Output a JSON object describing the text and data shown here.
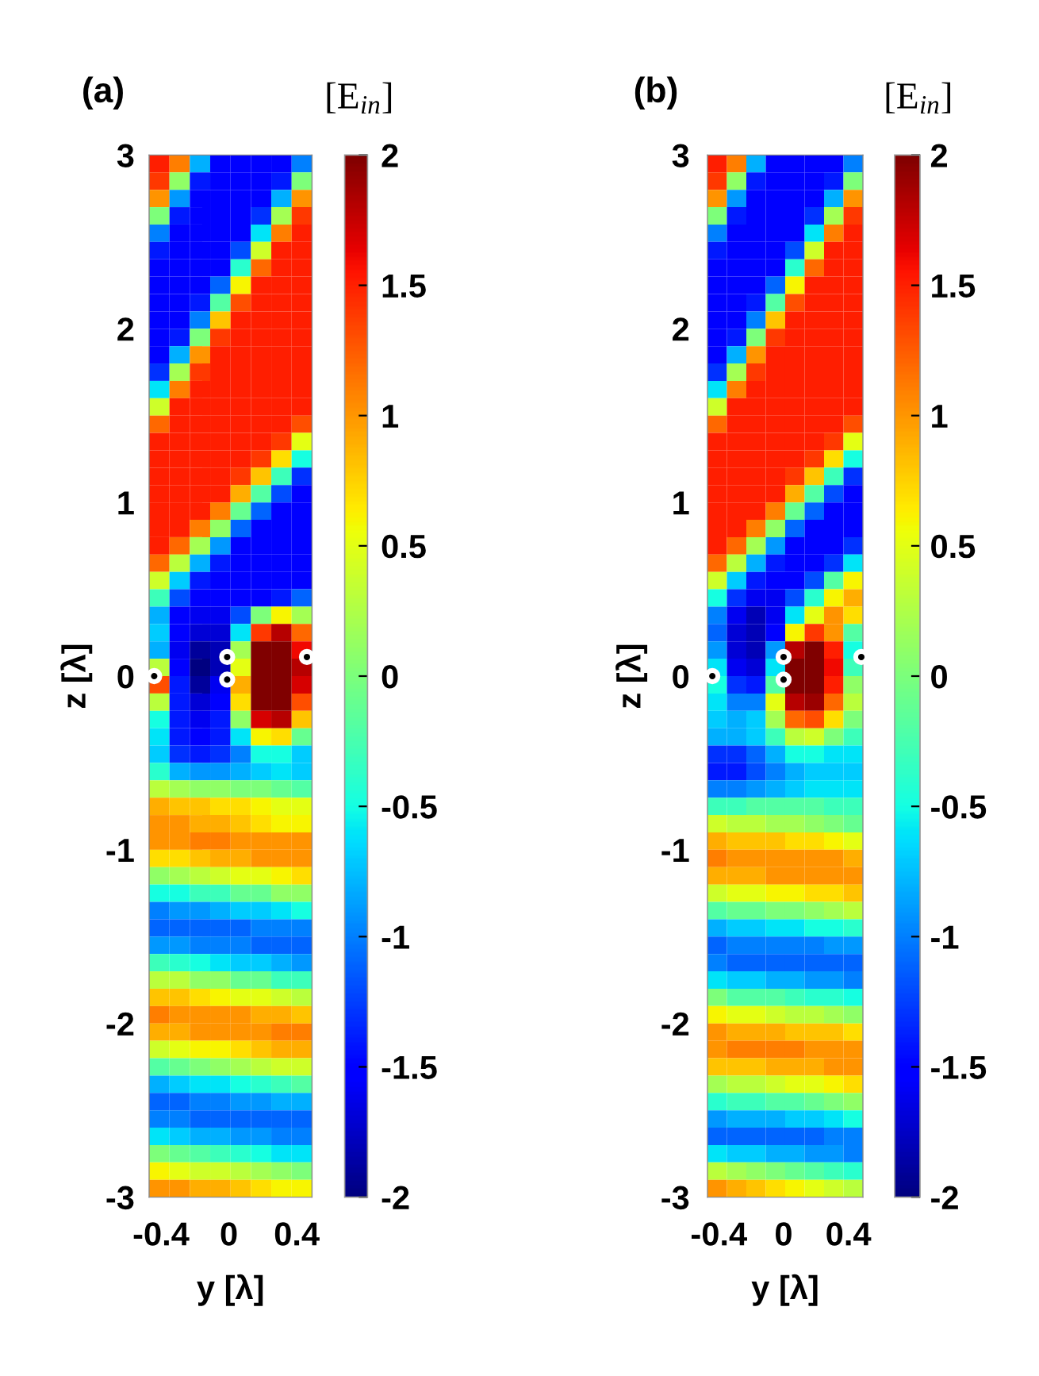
{
  "chart_data": [
    {
      "type": "heatmap",
      "title": "(a)",
      "xlabel": "y [λ]",
      "ylabel": "z [λ]",
      "clabel": "[E$_{in}$]",
      "x": [
        -0.41,
        -0.29,
        -0.17,
        -0.05,
        0.07,
        0.19,
        0.31,
        0.43
      ],
      "cells": [
        [
          1.5,
          1.1,
          -0.8,
          -1.5,
          -1.5,
          -1.5,
          -1.5,
          -1.0
        ],
        [
          1.4,
          0.1,
          -1.4,
          -1.5,
          -1.5,
          -1.5,
          -1.4,
          0.0
        ],
        [
          1.0,
          -0.9,
          -1.5,
          -1.5,
          -1.5,
          -1.5,
          -0.8,
          1.0
        ],
        [
          0.0,
          -1.4,
          -1.5,
          -1.5,
          -1.5,
          -1.3,
          0.2,
          1.4
        ],
        [
          -1.0,
          -1.5,
          -1.5,
          -1.5,
          -1.5,
          -0.6,
          1.1,
          1.5
        ],
        [
          -1.4,
          -1.5,
          -1.5,
          -1.5,
          -1.2,
          0.4,
          1.5,
          1.5
        ],
        [
          -1.5,
          -1.5,
          -1.5,
          -1.5,
          -0.4,
          1.2,
          1.5,
          1.5
        ],
        [
          -1.5,
          -1.5,
          -1.5,
          -1.1,
          0.6,
          1.5,
          1.5,
          1.5
        ],
        [
          -1.5,
          -1.5,
          -1.4,
          -0.2,
          1.3,
          1.5,
          1.5,
          1.5
        ],
        [
          -1.5,
          -1.5,
          -1.0,
          0.8,
          1.5,
          1.5,
          1.5,
          1.5
        ],
        [
          -1.5,
          -1.4,
          0.0,
          1.4,
          1.5,
          1.5,
          1.5,
          1.5
        ],
        [
          -1.5,
          -0.8,
          1.0,
          1.5,
          1.5,
          1.5,
          1.5,
          1.5
        ],
        [
          -1.3,
          0.2,
          1.4,
          1.5,
          1.5,
          1.5,
          1.5,
          1.5
        ],
        [
          -0.6,
          1.1,
          1.5,
          1.5,
          1.5,
          1.5,
          1.5,
          1.5
        ],
        [
          0.4,
          1.5,
          1.5,
          1.5,
          1.5,
          1.5,
          1.5,
          1.5
        ],
        [
          1.2,
          1.5,
          1.5,
          1.5,
          1.5,
          1.5,
          1.5,
          1.3
        ],
        [
          1.5,
          1.5,
          1.5,
          1.5,
          1.5,
          1.5,
          1.4,
          0.5
        ],
        [
          1.5,
          1.5,
          1.5,
          1.5,
          1.5,
          1.4,
          0.7,
          -0.5
        ],
        [
          1.5,
          1.5,
          1.5,
          1.5,
          1.4,
          0.8,
          -0.3,
          -1.3
        ],
        [
          1.5,
          1.5,
          1.5,
          1.5,
          0.9,
          -0.2,
          -1.2,
          -1.5
        ],
        [
          1.5,
          1.5,
          1.5,
          1.1,
          -0.1,
          -1.1,
          -1.5,
          -1.5
        ],
        [
          1.5,
          1.5,
          1.1,
          0.1,
          -1.1,
          -1.5,
          -1.5,
          -1.5
        ],
        [
          1.5,
          1.2,
          0.2,
          -0.9,
          -1.5,
          -1.5,
          -1.5,
          -1.5
        ],
        [
          1.2,
          0.3,
          -0.8,
          -1.4,
          -1.5,
          -1.5,
          -1.5,
          -1.5
        ],
        [
          0.4,
          -0.7,
          -1.4,
          -1.5,
          -1.5,
          -1.5,
          -1.5,
          -1.5
        ],
        [
          -0.3,
          -1.2,
          -1.5,
          -1.5,
          -1.5,
          -1.5,
          -1.4,
          -1.1
        ],
        [
          -0.8,
          -1.5,
          -1.6,
          -1.6,
          -1.2,
          0.0,
          0.6,
          0.2
        ],
        [
          -0.7,
          -1.5,
          -1.7,
          -1.7,
          -0.6,
          1.4,
          1.8,
          1.2
        ],
        [
          -0.8,
          -1.6,
          -1.9,
          -1.8,
          0.2,
          2.0,
          2.0,
          1.6
        ],
        [
          0.3,
          -1.5,
          -2.0,
          -1.8,
          0.5,
          2.0,
          2.0,
          1.8
        ],
        [
          1.3,
          -1.4,
          -1.9,
          -1.6,
          0.9,
          2.0,
          2.0,
          1.7
        ],
        [
          0.3,
          -1.4,
          -1.7,
          -1.5,
          0.7,
          2.0,
          2.0,
          1.3
        ],
        [
          -0.5,
          -1.4,
          -1.6,
          -1.4,
          0.1,
          1.7,
          1.8,
          0.8
        ],
        [
          -0.6,
          -1.4,
          -1.5,
          -1.4,
          -0.6,
          0.6,
          0.7,
          -0.1
        ],
        [
          -0.7,
          -1.3,
          -1.4,
          -1.3,
          -1.0,
          -0.5,
          -0.5,
          -0.7
        ],
        [
          -0.4,
          -0.8,
          -0.9,
          -0.9,
          -0.8,
          -0.7,
          -0.6,
          -0.7
        ],
        [
          0.3,
          0.2,
          0.1,
          0.1,
          0.0,
          0.0,
          -0.1,
          -0.2
        ],
        [
          0.9,
          0.8,
          0.8,
          0.7,
          0.7,
          0.6,
          0.5,
          0.5
        ],
        [
          1.0,
          1.0,
          0.9,
          0.9,
          0.8,
          0.7,
          0.6,
          0.6
        ],
        [
          1.0,
          1.0,
          1.1,
          1.1,
          1.0,
          1.0,
          1.0,
          1.0
        ],
        [
          0.7,
          0.7,
          0.8,
          0.9,
          0.9,
          1.0,
          1.0,
          1.0
        ],
        [
          0.1,
          0.2,
          0.3,
          0.4,
          0.5,
          0.5,
          0.6,
          0.7
        ],
        [
          -0.5,
          -0.5,
          -0.3,
          -0.3,
          -0.1,
          -0.1,
          0.1,
          0.1
        ],
        [
          -1.0,
          -0.9,
          -0.9,
          -0.8,
          -0.7,
          -0.7,
          -0.6,
          -0.5
        ],
        [
          -1.1,
          -1.1,
          -1.1,
          -1.1,
          -1.1,
          -1.0,
          -1.0,
          -1.0
        ],
        [
          -0.9,
          -0.9,
          -1.0,
          -1.0,
          -1.0,
          -1.1,
          -1.1,
          -1.1
        ],
        [
          -0.3,
          -0.4,
          -0.5,
          -0.6,
          -0.7,
          -0.7,
          -0.8,
          -0.9
        ],
        [
          0.3,
          0.3,
          0.1,
          0.1,
          -0.1,
          -0.1,
          -0.3,
          -0.3
        ],
        [
          0.8,
          0.8,
          0.7,
          0.6,
          0.5,
          0.5,
          0.4,
          0.3
        ],
        [
          1.1,
          1.0,
          1.0,
          1.0,
          1.0,
          0.9,
          0.9,
          0.8
        ],
        [
          0.9,
          0.9,
          1.0,
          1.0,
          1.0,
          1.0,
          1.1,
          1.1
        ],
        [
          0.4,
          0.5,
          0.6,
          0.6,
          0.7,
          0.8,
          0.9,
          0.9
        ],
        [
          -0.2,
          -0.1,
          0.0,
          0.1,
          0.2,
          0.3,
          0.4,
          0.4
        ],
        [
          -0.8,
          -0.7,
          -0.6,
          -0.6,
          -0.5,
          -0.4,
          -0.3,
          -0.2
        ],
        [
          -1.1,
          -1.1,
          -1.0,
          -1.0,
          -0.9,
          -0.9,
          -0.8,
          -0.8
        ],
        [
          -1.0,
          -1.0,
          -1.1,
          -1.1,
          -1.1,
          -1.1,
          -1.1,
          -1.1
        ],
        [
          -0.6,
          -0.7,
          -0.8,
          -0.8,
          -0.9,
          -0.9,
          -1.0,
          -1.0
        ],
        [
          0.0,
          -0.1,
          -0.2,
          -0.3,
          -0.4,
          -0.5,
          -0.6,
          -0.6
        ],
        [
          0.6,
          0.5,
          0.4,
          0.4,
          0.3,
          0.2,
          0.1,
          0.0
        ],
        [
          1.0,
          1.0,
          0.9,
          0.9,
          0.8,
          0.7,
          0.6,
          0.6
        ]
      ],
      "xlim": [
        -0.47,
        0.49
      ],
      "ylim": [
        -3,
        3
      ],
      "xticks": [
        -0.4,
        0,
        0.4
      ],
      "yticks": [
        -3,
        -2,
        -1,
        0,
        1,
        2,
        3
      ],
      "clim": [
        -2,
        2
      ],
      "cticks": [
        -2,
        -1.5,
        -1,
        -0.5,
        0,
        0.5,
        1,
        1.5,
        2
      ],
      "series": [
        {
          "type": "scatter",
          "x": [
            -0.44,
            -0.01,
            -0.01,
            0.46
          ],
          "values": [
            0,
            0.11,
            -0.02,
            0.11
          ],
          "color": "#000000",
          "marker": "circle"
        }
      ]
    },
    {
      "type": "heatmap",
      "title": "(b)",
      "xlabel": "y [λ]",
      "ylabel": "z [λ]",
      "clabel": "[E$_{in}$]",
      "x": [
        -0.41,
        -0.29,
        -0.17,
        -0.05,
        0.07,
        0.19,
        0.31,
        0.43
      ],
      "cells": [
        [
          1.5,
          1.1,
          -0.8,
          -1.5,
          -1.5,
          -1.5,
          -1.5,
          -1.0
        ],
        [
          1.4,
          0.1,
          -1.4,
          -1.5,
          -1.5,
          -1.5,
          -1.4,
          0.0
        ],
        [
          1.0,
          -0.9,
          -1.5,
          -1.5,
          -1.5,
          -1.5,
          -0.8,
          1.0
        ],
        [
          0.0,
          -1.4,
          -1.5,
          -1.5,
          -1.5,
          -1.3,
          0.2,
          1.4
        ],
        [
          -1.0,
          -1.5,
          -1.5,
          -1.5,
          -1.5,
          -0.6,
          1.1,
          1.5
        ],
        [
          -1.4,
          -1.5,
          -1.5,
          -1.5,
          -1.2,
          0.4,
          1.5,
          1.5
        ],
        [
          -1.5,
          -1.5,
          -1.5,
          -1.5,
          -0.4,
          1.2,
          1.5,
          1.5
        ],
        [
          -1.5,
          -1.5,
          -1.5,
          -1.1,
          0.6,
          1.5,
          1.5,
          1.5
        ],
        [
          -1.5,
          -1.5,
          -1.4,
          -0.2,
          1.3,
          1.5,
          1.5,
          1.5
        ],
        [
          -1.5,
          -1.5,
          -1.0,
          0.8,
          1.5,
          1.5,
          1.5,
          1.5
        ],
        [
          -1.5,
          -1.4,
          0.0,
          1.4,
          1.5,
          1.5,
          1.5,
          1.5
        ],
        [
          -1.5,
          -0.8,
          1.0,
          1.5,
          1.5,
          1.5,
          1.5,
          1.5
        ],
        [
          -1.3,
          0.2,
          1.4,
          1.5,
          1.5,
          1.5,
          1.5,
          1.5
        ],
        [
          -0.6,
          1.1,
          1.5,
          1.5,
          1.5,
          1.5,
          1.5,
          1.5
        ],
        [
          0.4,
          1.5,
          1.5,
          1.5,
          1.5,
          1.5,
          1.5,
          1.5
        ],
        [
          1.2,
          1.5,
          1.5,
          1.5,
          1.5,
          1.5,
          1.5,
          1.3
        ],
        [
          1.5,
          1.5,
          1.5,
          1.5,
          1.5,
          1.5,
          1.4,
          0.5
        ],
        [
          1.5,
          1.5,
          1.5,
          1.5,
          1.5,
          1.4,
          0.7,
          -0.5
        ],
        [
          1.5,
          1.5,
          1.5,
          1.5,
          1.4,
          0.8,
          -0.3,
          -1.3
        ],
        [
          1.5,
          1.5,
          1.5,
          1.5,
          0.9,
          -0.2,
          -1.2,
          -1.5
        ],
        [
          1.5,
          1.5,
          1.5,
          1.1,
          -0.1,
          -1.1,
          -1.5,
          -1.5
        ],
        [
          1.5,
          1.5,
          1.1,
          0.1,
          -1.1,
          -1.5,
          -1.5,
          -1.5
        ],
        [
          1.5,
          1.2,
          0.2,
          -0.9,
          -1.5,
          -1.5,
          -1.5,
          -1.3
        ],
        [
          1.2,
          0.3,
          -0.8,
          -1.4,
          -1.5,
          -1.5,
          -1.3,
          -0.6
        ],
        [
          0.4,
          -0.7,
          -1.4,
          -1.5,
          -1.5,
          -1.2,
          -0.2,
          0.6
        ],
        [
          -0.5,
          -1.3,
          -1.6,
          -1.6,
          -1.2,
          -0.4,
          0.6,
          0.9
        ],
        [
          -1.0,
          -1.6,
          -1.8,
          -1.6,
          -0.6,
          0.5,
          1.0,
          0.7
        ],
        [
          -1.1,
          -1.7,
          -1.8,
          -1.5,
          0.6,
          1.4,
          1.0,
          -0.2
        ],
        [
          -0.9,
          -1.7,
          -1.8,
          -0.9,
          1.8,
          2.0,
          1.5,
          -0.5
        ],
        [
          -0.6,
          -1.6,
          -1.7,
          -0.6,
          2.0,
          2.0,
          1.6,
          -0.3
        ],
        [
          -0.5,
          -1.3,
          -1.4,
          -0.2,
          2.0,
          2.0,
          1.5,
          0.1
        ],
        [
          -0.6,
          -1.0,
          -1.0,
          0.5,
          1.8,
          1.9,
          1.2,
          0.3
        ],
        [
          -0.7,
          -0.8,
          -0.7,
          0.2,
          1.2,
          1.3,
          0.7,
          0.0
        ],
        [
          -0.8,
          -0.8,
          -0.7,
          -0.3,
          0.3,
          0.4,
          0.0,
          -0.3
        ],
        [
          -1.3,
          -1.3,
          -1.1,
          -0.8,
          -0.5,
          -0.5,
          -0.6,
          -0.6
        ],
        [
          -1.4,
          -1.4,
          -1.2,
          -1.0,
          -0.8,
          -0.7,
          -0.7,
          -0.7
        ],
        [
          -1.0,
          -1.0,
          -0.9,
          -0.8,
          -0.7,
          -0.6,
          -0.6,
          -0.6
        ],
        [
          -0.3,
          -0.3,
          -0.2,
          -0.2,
          -0.2,
          -0.2,
          -0.3,
          -0.3
        ],
        [
          0.4,
          0.3,
          0.3,
          0.2,
          0.2,
          0.1,
          0.0,
          -0.1
        ],
        [
          0.9,
          0.8,
          0.8,
          0.8,
          0.7,
          0.7,
          0.6,
          0.5
        ],
        [
          1.1,
          1.0,
          1.0,
          1.0,
          1.0,
          1.0,
          1.0,
          0.9
        ],
        [
          0.9,
          0.9,
          0.9,
          1.0,
          1.0,
          1.0,
          1.0,
          1.0
        ],
        [
          0.4,
          0.5,
          0.5,
          0.6,
          0.6,
          0.7,
          0.7,
          0.8
        ],
        [
          -0.2,
          -0.1,
          -0.1,
          0.0,
          0.0,
          0.1,
          0.2,
          0.3
        ],
        [
          -0.8,
          -0.7,
          -0.7,
          -0.6,
          -0.6,
          -0.5,
          -0.5,
          -0.4
        ],
        [
          -1.1,
          -1.0,
          -1.0,
          -1.0,
          -1.0,
          -1.0,
          -0.9,
          -0.9
        ],
        [
          -1.0,
          -1.1,
          -1.1,
          -1.1,
          -1.1,
          -1.1,
          -1.1,
          -1.1
        ],
        [
          -0.6,
          -0.7,
          -0.7,
          -0.8,
          -0.8,
          -0.9,
          -0.9,
          -1.0
        ],
        [
          0.0,
          -0.2,
          -0.2,
          -0.2,
          -0.3,
          -0.4,
          -0.4,
          -0.5
        ],
        [
          0.6,
          0.5,
          0.5,
          0.4,
          0.3,
          0.3,
          0.2,
          0.1
        ],
        [
          1.0,
          0.9,
          0.9,
          0.9,
          0.8,
          0.8,
          0.8,
          0.7
        ],
        [
          1.0,
          1.1,
          1.1,
          1.1,
          1.1,
          1.0,
          1.0,
          1.0
        ],
        [
          0.8,
          0.8,
          0.8,
          0.9,
          0.9,
          0.9,
          1.0,
          1.0
        ],
        [
          0.2,
          0.3,
          0.3,
          0.4,
          0.5,
          0.5,
          0.6,
          0.7
        ],
        [
          -0.4,
          -0.3,
          -0.3,
          -0.2,
          -0.2,
          -0.1,
          0.0,
          0.1
        ],
        [
          -0.9,
          -0.8,
          -0.8,
          -0.8,
          -0.7,
          -0.7,
          -0.6,
          -0.5
        ],
        [
          -1.1,
          -1.1,
          -1.1,
          -1.1,
          -1.1,
          -1.1,
          -1.0,
          -1.0
        ],
        [
          -0.6,
          -0.7,
          -0.7,
          -0.8,
          -0.8,
          -0.9,
          -0.9,
          -1.0
        ],
        [
          0.3,
          0.2,
          0.1,
          0.0,
          -0.1,
          -0.2,
          -0.3,
          -0.4
        ],
        [
          1.0,
          0.9,
          0.8,
          0.7,
          0.6,
          0.5,
          0.4,
          0.3
        ]
      ],
      "xlim": [
        -0.47,
        0.49
      ],
      "ylim": [
        -3,
        3
      ],
      "xticks": [
        -0.4,
        0,
        0.4
      ],
      "yticks": [
        -3,
        -2,
        -1,
        0,
        1,
        2,
        3
      ],
      "clim": [
        -2,
        2
      ],
      "cticks": [
        -2,
        -1.5,
        -1,
        -0.5,
        0,
        0.5,
        1,
        1.5,
        2
      ],
      "series": [
        {
          "type": "scatter",
          "x": [
            -0.44,
            0,
            0,
            0.48
          ],
          "values": [
            0,
            0.11,
            -0.02,
            0.11
          ],
          "color": "#000000",
          "marker": "circle"
        }
      ]
    }
  ]
}
